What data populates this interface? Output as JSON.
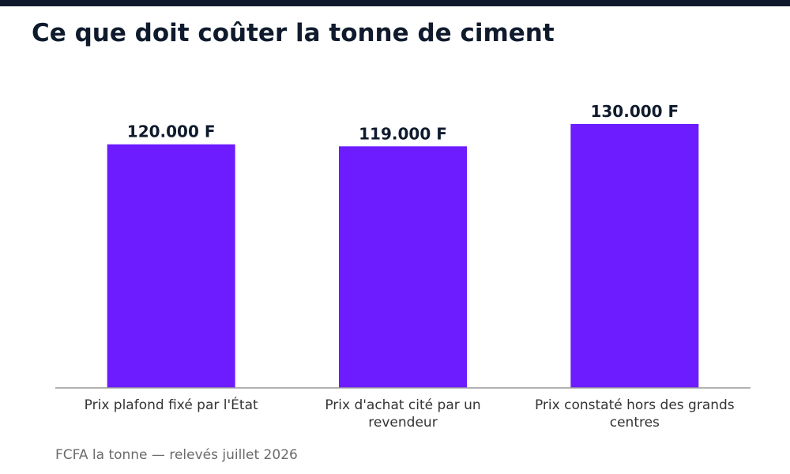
{
  "title": "Ce que doit coûter la tonne de ciment",
  "footnote": "FCFA la tonne — relevés juillet 2026",
  "colors": {
    "bar": "#6c1cff",
    "axis": "#999999",
    "title": "#0f1b2d",
    "value_label": "#0f1b2d",
    "category_label": "#333333",
    "top_bar": "#0f1b2d"
  },
  "chart_data": {
    "type": "bar",
    "categories": [
      "Prix plafond fixé par l'État",
      "Prix d'achat cité par un revendeur",
      "Prix constaté hors des grands centres"
    ],
    "category_lines": [
      [
        "Prix plafond fixé par l'État"
      ],
      [
        "Prix d'achat cité par un",
        "revendeur"
      ],
      [
        "Prix constaté hors des grands",
        "centres"
      ]
    ],
    "values": [
      120000,
      119000,
      130000
    ],
    "value_labels": [
      "120.000 F",
      "119.000 F",
      "130.000 F"
    ],
    "ylim": [
      0,
      130000
    ],
    "grid": false
  }
}
